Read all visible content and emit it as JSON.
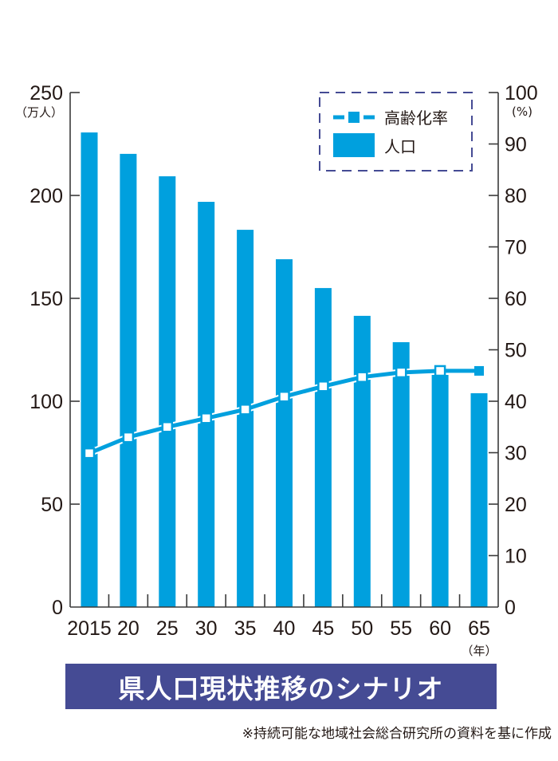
{
  "chart_data": {
    "type": "bar+line",
    "title": "県人口現状推移のシナリオ",
    "categories": [
      "2015",
      "20",
      "25",
      "30",
      "35",
      "40",
      "45",
      "50",
      "55",
      "60",
      "65"
    ],
    "series": [
      {
        "name": "人口",
        "type": "bar",
        "axis": "left",
        "color": "#00a0de",
        "values": [
          230.6,
          220.2,
          209.3,
          196.9,
          183.3,
          169.0,
          155.0,
          141.5,
          128.7,
          112.8,
          103.9
        ]
      },
      {
        "name": "高齢化率",
        "type": "line",
        "axis": "right",
        "color": "#00a0de",
        "values": [
          29.9,
          33.0,
          35.0,
          36.7,
          38.4,
          40.9,
          42.9,
          44.7,
          45.6,
          45.9,
          45.9
        ]
      }
    ],
    "y_left": {
      "unit": "（万人）",
      "ylim": [
        0,
        250
      ],
      "ticks": [
        "0",
        "50",
        "100",
        "150",
        "200",
        "250"
      ]
    },
    "y_right": {
      "unit": "(%)",
      "ylim": [
        0,
        100
      ],
      "ticks": [
        "0",
        "10",
        "20",
        "30",
        "40",
        "50",
        "60",
        "70",
        "80",
        "90",
        "100"
      ]
    },
    "x_unit": "（年）",
    "legend": {
      "position": "top-right",
      "entries": [
        "高齢化率",
        "人口"
      ]
    },
    "grid": false
  },
  "banner": {
    "title": "県人口現状推移のシナリオ",
    "bg": "#454b94"
  },
  "note": "※持続可能な地域社会総合研究所の資料を基に作成"
}
